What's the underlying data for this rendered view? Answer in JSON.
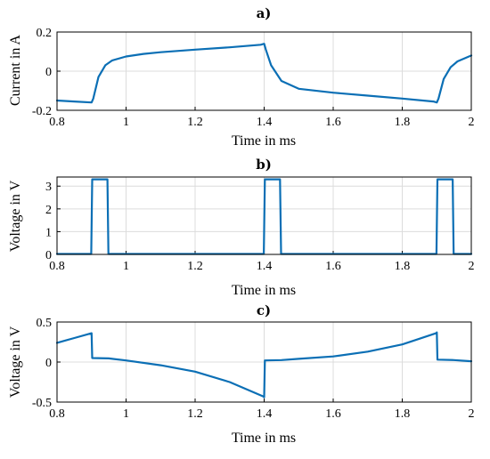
{
  "chart_data": [
    {
      "type": "line",
      "title": "a)",
      "xlabel": "Time in ms",
      "ylabel": "Current in A",
      "xlim": [
        0.8,
        2
      ],
      "ylim": [
        -0.2,
        0.2
      ],
      "xticks": [
        "0.8",
        "1",
        "1.2",
        "1.4",
        "1.6",
        "1.8",
        "2"
      ],
      "yticks": [
        "-0.2",
        "0",
        "0.2"
      ],
      "grid": true,
      "series": [
        {
          "x": [
            0.8,
            0.85,
            0.9,
            0.905,
            0.92,
            0.94,
            0.96,
            1.0,
            1.05,
            1.1,
            1.2,
            1.3,
            1.39,
            1.4,
            1.405,
            1.42,
            1.45,
            1.5,
            1.6,
            1.7,
            1.8,
            1.89,
            1.9,
            1.905,
            1.92,
            1.94,
            1.96,
            2.0
          ],
          "y": [
            -0.15,
            -0.155,
            -0.16,
            -0.14,
            -0.03,
            0.03,
            0.055,
            0.075,
            0.088,
            0.097,
            0.11,
            0.122,
            0.135,
            0.14,
            0.11,
            0.03,
            -0.05,
            -0.09,
            -0.11,
            -0.125,
            -0.14,
            -0.155,
            -0.16,
            -0.14,
            -0.04,
            0.02,
            0.05,
            0.08
          ]
        }
      ]
    },
    {
      "type": "line",
      "title": "b)",
      "xlabel": "Time in ms",
      "ylabel": "Voltage in V",
      "xlim": [
        0.8,
        2
      ],
      "ylim": [
        0,
        3.4
      ],
      "xticks": [
        "0.8",
        "1",
        "1.2",
        "1.4",
        "1.6",
        "1.8",
        "2"
      ],
      "yticks": [
        "0",
        "1",
        "2",
        "3"
      ],
      "grid": true,
      "series": [
        {
          "x": [
            0.8,
            0.899,
            0.902,
            0.946,
            0.949,
            1.399,
            1.402,
            1.446,
            1.449,
            1.899,
            1.902,
            1.946,
            1.949,
            2.0
          ],
          "y": [
            0.02,
            0.02,
            3.3,
            3.3,
            0.02,
            0.02,
            3.3,
            3.3,
            0.02,
            0.02,
            3.3,
            3.3,
            0.02,
            0.02
          ]
        }
      ]
    },
    {
      "type": "line",
      "title": "c)",
      "xlabel": "Time in ms",
      "ylabel": "Voltage in V",
      "xlim": [
        0.8,
        2
      ],
      "ylim": [
        -0.5,
        0.5
      ],
      "xticks": [
        "0.8",
        "1",
        "1.2",
        "1.4",
        "1.6",
        "1.8",
        "2"
      ],
      "yticks": [
        "-0.5",
        "0",
        "0.5"
      ],
      "grid": true,
      "series": [
        {
          "x": [
            0.8,
            0.85,
            0.9,
            0.902,
            0.95,
            1.0,
            1.1,
            1.2,
            1.3,
            1.398,
            1.4,
            1.402,
            1.45,
            1.5,
            1.6,
            1.7,
            1.8,
            1.898,
            1.9,
            1.902,
            1.95,
            2.0
          ],
          "y": [
            0.24,
            0.3,
            0.36,
            0.05,
            0.045,
            0.02,
            -0.04,
            -0.12,
            -0.25,
            -0.43,
            -0.44,
            0.02,
            0.025,
            0.04,
            0.07,
            0.13,
            0.22,
            0.36,
            0.37,
            0.03,
            0.025,
            0.01
          ]
        }
      ]
    }
  ]
}
